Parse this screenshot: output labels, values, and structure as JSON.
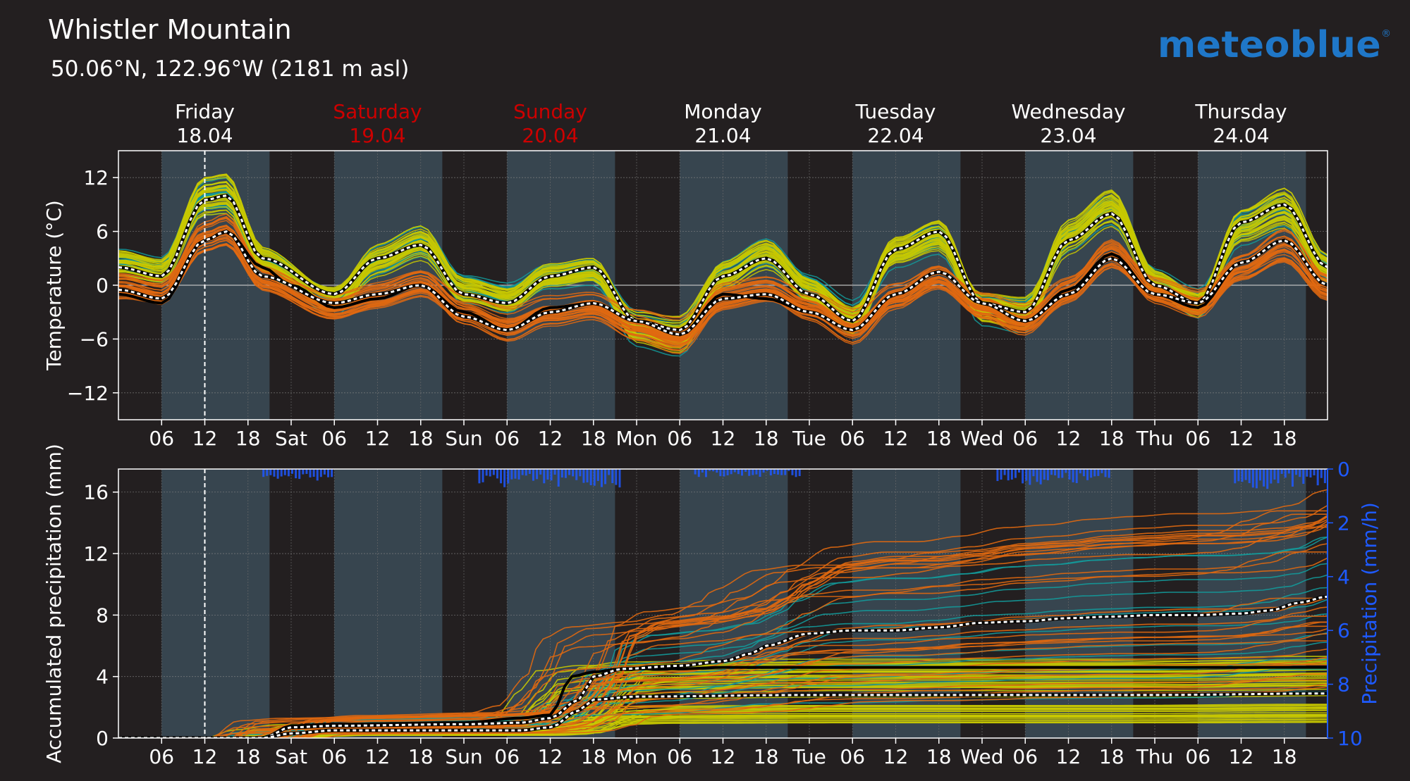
{
  "header": {
    "title": "Whistler Mountain",
    "coords": "50.06°N, 122.96°W (2181 m asl)",
    "brand": "meteoblue",
    "brand_mark": "®"
  },
  "colors": {
    "background": "#231f20",
    "night_band": "#231f20",
    "day_band": "#37454f",
    "weekend_red": "#cc0000",
    "median": "#ffffff",
    "black_line": "#000000",
    "members_teal": "#139a9a",
    "members_yellow": "#c8c800",
    "members_orange": "#e06810",
    "precip_bars": "#1e58ff",
    "precip_axis": "#1e5aff"
  },
  "days": [
    {
      "name": "Friday",
      "date": "18.04",
      "weekend": false
    },
    {
      "name": "Saturday",
      "date": "19.04",
      "weekend": true
    },
    {
      "name": "Sunday",
      "date": "20.04",
      "weekend": true
    },
    {
      "name": "Monday",
      "date": "21.04",
      "weekend": false
    },
    {
      "name": "Tuesday",
      "date": "22.04",
      "weekend": false
    },
    {
      "name": "Wednesday",
      "date": "23.04",
      "weekend": false
    },
    {
      "name": "Thursday",
      "date": "24.04",
      "weekend": false
    }
  ],
  "time_ticks": [
    "06",
    "12",
    "18",
    "Sat",
    "06",
    "12",
    "18",
    "Sun",
    "06",
    "12",
    "18",
    "Mon",
    "06",
    "12",
    "18",
    "Tue",
    "06",
    "12",
    "18",
    "Wed",
    "06",
    "12",
    "18",
    "Thu",
    "06",
    "12",
    "18"
  ],
  "chart_data": [
    {
      "type": "line",
      "ylabel": "Temperature (°C)",
      "ylim": [
        -15,
        15
      ],
      "yticks": [
        "12",
        "6",
        "0",
        "−6",
        "−12"
      ],
      "ytick_values": [
        12,
        6,
        0,
        -6,
        -12
      ],
      "xlim_hours": [
        0,
        168
      ],
      "now_hour": 12,
      "day_segments": [
        [
          6,
          21
        ],
        [
          30,
          45
        ],
        [
          54,
          69
        ],
        [
          78,
          93
        ],
        [
          102,
          117
        ],
        [
          126,
          141
        ],
        [
          150,
          165
        ]
      ],
      "series": [
        {
          "key": "upper",
          "x_hours": [
            0,
            6,
            12,
            15,
            20,
            30,
            36,
            42,
            48,
            54,
            60,
            66,
            72,
            78,
            84,
            90,
            96,
            102,
            108,
            114,
            120,
            126,
            132,
            138,
            144,
            150,
            156,
            162,
            168
          ],
          "values": [
            2,
            1,
            9.5,
            10,
            3,
            -1,
            3,
            4.5,
            -1,
            -2,
            1,
            2,
            -4,
            -5,
            1,
            3,
            -1,
            -4,
            4,
            6,
            -2,
            -3,
            5,
            8,
            0,
            -2,
            7,
            9,
            2
          ]
        },
        {
          "key": "lower",
          "x_hours": [
            0,
            6,
            12,
            15,
            20,
            30,
            36,
            42,
            48,
            54,
            60,
            66,
            72,
            78,
            84,
            90,
            96,
            102,
            108,
            114,
            120,
            126,
            132,
            138,
            144,
            150,
            156,
            162,
            168
          ],
          "values": [
            -0.5,
            -1.5,
            5,
            6,
            1,
            -2,
            -1,
            0,
            -3.5,
            -5,
            -3,
            -2,
            -4,
            -5.5,
            -1.5,
            -1,
            -3,
            -5,
            -1,
            1.5,
            -2,
            -4,
            -1,
            3,
            -1,
            -2,
            2.5,
            5,
            0
          ]
        },
        {
          "key": "black",
          "x_hours": [
            0,
            6,
            12,
            15,
            20,
            24,
            30,
            36,
            42,
            48,
            54,
            60,
            66,
            72,
            78,
            84,
            90,
            96,
            102,
            108,
            114,
            120,
            126,
            132,
            138,
            144,
            150,
            156,
            162,
            168
          ],
          "values": [
            -1,
            -2,
            5,
            6,
            2,
            0,
            -2.5,
            -1.5,
            0,
            -3,
            -5,
            -2.5,
            -2,
            -4,
            -5.5,
            -1,
            -1.5,
            -3,
            -5,
            -1,
            1.5,
            -2,
            -4,
            -0.5,
            3.5,
            -1,
            -2.5,
            2.5,
            5,
            0
          ]
        }
      ]
    },
    {
      "type": "line",
      "ylabel": "Accumulated precipitation (mm)",
      "ylabel_right": "Precipitation (mm/h)",
      "ylim": [
        0,
        17.5
      ],
      "yticks": [
        "16",
        "12",
        "8",
        "4",
        "0"
      ],
      "ytick_values": [
        16,
        12,
        8,
        4,
        0
      ],
      "y2ticks": [
        "0",
        "2",
        "4",
        "6",
        "8",
        "10"
      ],
      "y2tick_values": [
        0,
        2,
        4,
        6,
        8,
        10
      ],
      "y2lim": [
        0,
        10
      ],
      "xlim_hours": [
        0,
        168
      ],
      "now_hour": 12,
      "series": [
        {
          "key": "median-upper",
          "x_hours": [
            0,
            20,
            24,
            30,
            48,
            56,
            60,
            64,
            66,
            70,
            78,
            84,
            88,
            90,
            96,
            102,
            108,
            114,
            120,
            126,
            132,
            138,
            144,
            150,
            156,
            160,
            164,
            168
          ],
          "values": [
            0,
            0,
            0.7,
            0.8,
            0.9,
            1,
            1.3,
            2.5,
            4,
            4.5,
            4.7,
            5,
            5.5,
            6,
            6.8,
            7,
            7,
            7.2,
            7.5,
            7.6,
            7.8,
            7.9,
            8,
            8,
            8.1,
            8.3,
            8.8,
            9.2
          ]
        },
        {
          "key": "median-lower",
          "x_hours": [
            0,
            20,
            24,
            30,
            48,
            56,
            60,
            64,
            66,
            72,
            96,
            120,
            144,
            168
          ],
          "values": [
            0,
            0,
            0.3,
            0.5,
            0.5,
            0.5,
            0.7,
            1.8,
            2.5,
            2.7,
            2.8,
            2.8,
            2.8,
            2.9
          ]
        },
        {
          "key": "black",
          "x_hours": [
            0,
            20,
            24,
            30,
            48,
            56,
            60,
            63,
            66,
            70,
            78,
            84,
            88,
            168
          ],
          "values": [
            0,
            0,
            0.8,
            0.9,
            1,
            1.3,
            1.5,
            4,
            4.3,
            4.5,
            4.5,
            4.6,
            4.6,
            4.6
          ]
        }
      ],
      "hourly_precip_mm_h": [
        {
          "x_hours": [
            20,
            30
          ],
          "value": 0.3
        },
        {
          "x_hours": [
            50,
            70
          ],
          "value": 0.5
        },
        {
          "x_hours": [
            80,
            95
          ],
          "value": 0.2
        },
        {
          "x_hours": [
            122,
            138
          ],
          "value": 0.4
        },
        {
          "x_hours": [
            155,
            168
          ],
          "value": 0.5
        }
      ]
    }
  ]
}
